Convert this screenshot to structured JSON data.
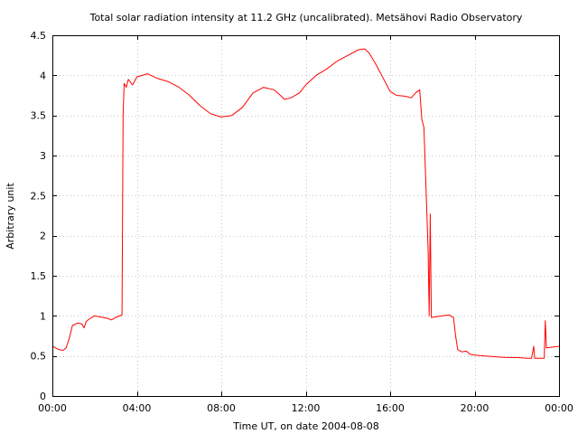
{
  "chart_data": {
    "type": "line",
    "title": "Total solar radiation intensity at 11.2 GHz (uncalibrated). Metsähovi Radio Observatory",
    "xlabel": "Time UT, on date 2004-08-08",
    "ylabel": "Arbitrary unit",
    "xlim": [
      0,
      24
    ],
    "ylim": [
      0,
      4.5
    ],
    "x_unit": "hours UT",
    "x_ticks": [
      0,
      4,
      8,
      12,
      16,
      20,
      24
    ],
    "x_tick_labels": [
      "00:00",
      "04:00",
      "08:00",
      "12:00",
      "16:00",
      "20:00",
      "00:00"
    ],
    "y_ticks": [
      0,
      0.5,
      1,
      1.5,
      2,
      2.5,
      3,
      3.5,
      4,
      4.5
    ],
    "y_tick_labels": [
      "0",
      "0.5",
      "1",
      "1.5",
      "2",
      "2.5",
      "3",
      "3.5",
      "4",
      "4.5"
    ],
    "grid": true,
    "colors": {
      "series": "#ff0000"
    },
    "series": [
      {
        "points": [
          [
            0.0,
            0.62
          ],
          [
            0.3,
            0.58
          ],
          [
            0.5,
            0.57
          ],
          [
            0.65,
            0.6
          ],
          [
            0.8,
            0.72
          ],
          [
            0.95,
            0.88
          ],
          [
            1.2,
            0.91
          ],
          [
            1.4,
            0.9
          ],
          [
            1.5,
            0.85
          ],
          [
            1.6,
            0.93
          ],
          [
            1.8,
            0.97
          ],
          [
            2.0,
            1.0
          ],
          [
            2.2,
            0.99
          ],
          [
            2.4,
            0.98
          ],
          [
            2.6,
            0.97
          ],
          [
            2.8,
            0.95
          ],
          [
            3.0,
            0.98
          ],
          [
            3.3,
            1.01
          ],
          [
            3.35,
            3.5
          ],
          [
            3.4,
            3.9
          ],
          [
            3.5,
            3.85
          ],
          [
            3.6,
            3.95
          ],
          [
            3.8,
            3.88
          ],
          [
            4.0,
            3.98
          ],
          [
            4.5,
            4.02
          ],
          [
            5.0,
            3.96
          ],
          [
            5.5,
            3.92
          ],
          [
            6.0,
            3.85
          ],
          [
            6.5,
            3.75
          ],
          [
            7.0,
            3.62
          ],
          [
            7.5,
            3.52
          ],
          [
            8.0,
            3.48
          ],
          [
            8.5,
            3.5
          ],
          [
            9.0,
            3.6
          ],
          [
            9.5,
            3.78
          ],
          [
            10.0,
            3.85
          ],
          [
            10.5,
            3.82
          ],
          [
            10.8,
            3.75
          ],
          [
            11.0,
            3.7
          ],
          [
            11.3,
            3.72
          ],
          [
            11.7,
            3.78
          ],
          [
            12.0,
            3.88
          ],
          [
            12.5,
            4.0
          ],
          [
            13.0,
            4.08
          ],
          [
            13.5,
            4.18
          ],
          [
            14.0,
            4.25
          ],
          [
            14.5,
            4.32
          ],
          [
            14.8,
            4.33
          ],
          [
            15.0,
            4.28
          ],
          [
            15.3,
            4.15
          ],
          [
            15.7,
            3.95
          ],
          [
            16.0,
            3.8
          ],
          [
            16.3,
            3.75
          ],
          [
            16.7,
            3.74
          ],
          [
            17.0,
            3.72
          ],
          [
            17.2,
            3.78
          ],
          [
            17.4,
            3.82
          ],
          [
            17.5,
            3.45
          ],
          [
            17.6,
            3.35
          ],
          [
            17.7,
            2.6
          ],
          [
            17.8,
            1.8
          ],
          [
            17.85,
            1.0
          ],
          [
            17.9,
            2.27
          ],
          [
            17.95,
            0.98
          ],
          [
            18.2,
            0.99
          ],
          [
            18.5,
            1.0
          ],
          [
            18.8,
            1.01
          ],
          [
            19.0,
            0.98
          ],
          [
            19.1,
            0.75
          ],
          [
            19.2,
            0.58
          ],
          [
            19.4,
            0.55
          ],
          [
            19.6,
            0.56
          ],
          [
            19.8,
            0.52
          ],
          [
            20.0,
            0.51
          ],
          [
            20.5,
            0.5
          ],
          [
            21.0,
            0.49
          ],
          [
            21.5,
            0.48
          ],
          [
            22.0,
            0.48
          ],
          [
            22.5,
            0.47
          ],
          [
            22.7,
            0.47
          ],
          [
            22.8,
            0.62
          ],
          [
            22.85,
            0.47
          ],
          [
            23.0,
            0.47
          ],
          [
            23.2,
            0.47
          ],
          [
            23.3,
            0.47
          ],
          [
            23.35,
            0.94
          ],
          [
            23.4,
            0.6
          ],
          [
            23.7,
            0.61
          ],
          [
            24.0,
            0.62
          ]
        ]
      }
    ]
  }
}
